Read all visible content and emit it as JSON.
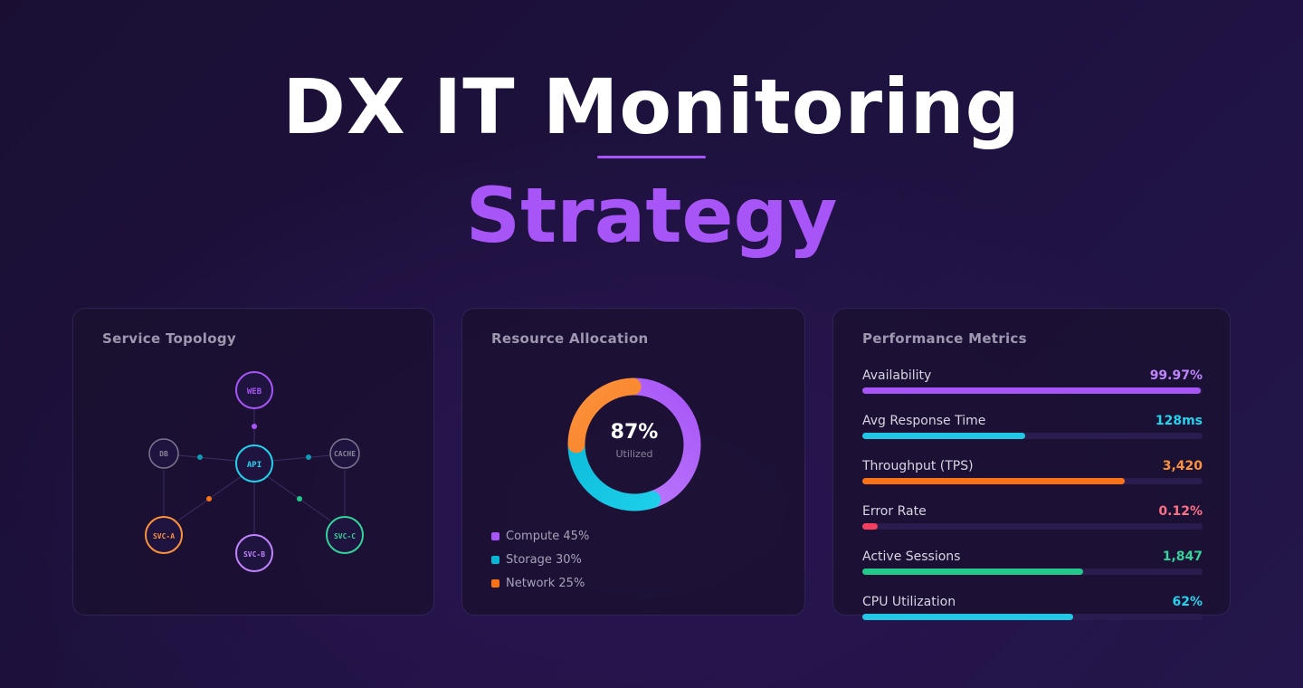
{
  "hero": {
    "title": "DX IT Monitoring",
    "subtitle": "Strategy"
  },
  "topology": {
    "title": "Service Topology",
    "nodes": {
      "web": {
        "label": "WEB",
        "color": "#a855f7"
      },
      "api": {
        "label": "API",
        "color": "#22d3ee"
      },
      "db": {
        "label": "DB",
        "color": "#8b8598"
      },
      "cache": {
        "label": "CACHE",
        "color": "#8b8598"
      },
      "svc_a": {
        "label": "SVC-A",
        "color": "#fb923c"
      },
      "svc_b": {
        "label": "SVC-B",
        "color": "#c084fc"
      },
      "svc_c": {
        "label": "SVC-C",
        "color": "#34d399"
      }
    }
  },
  "resource": {
    "title": "Resource Allocation",
    "center_value": "87%",
    "center_label": "Utilized",
    "segments": [
      {
        "name": "Compute",
        "percent": 45,
        "label": "Compute 45%",
        "color": "#a855f7"
      },
      {
        "name": "Storage",
        "percent": 30,
        "label": "Storage 30%",
        "color": "#06b6d4"
      },
      {
        "name": "Network",
        "percent": 25,
        "label": "Network 25%",
        "color": "#f97316"
      }
    ]
  },
  "metrics": {
    "title": "Performance Metrics",
    "items": [
      {
        "name": "Availability",
        "value": "99.97%",
        "level": 0.995,
        "color": "#a855f7",
        "value_color": "#c084fc"
      },
      {
        "name": "Avg Response Time",
        "value": "128ms",
        "level": 0.48,
        "color": "#22c7e6",
        "value_color": "#22d3ee"
      },
      {
        "name": "Throughput (TPS)",
        "value": "3,420",
        "level": 0.77,
        "color": "#f97316",
        "value_color": "#fb923c"
      },
      {
        "name": "Error Rate",
        "value": "0.12%",
        "level": 0.045,
        "color": "#f43f5e",
        "value_color": "#fb7185"
      },
      {
        "name": "Active Sessions",
        "value": "1,847",
        "level": 0.65,
        "color": "#22c98a",
        "value_color": "#34d399"
      },
      {
        "name": "CPU Utilization",
        "value": "62%",
        "level": 0.62,
        "color": "#22c7e6",
        "value_color": "#22d3ee"
      }
    ]
  }
}
